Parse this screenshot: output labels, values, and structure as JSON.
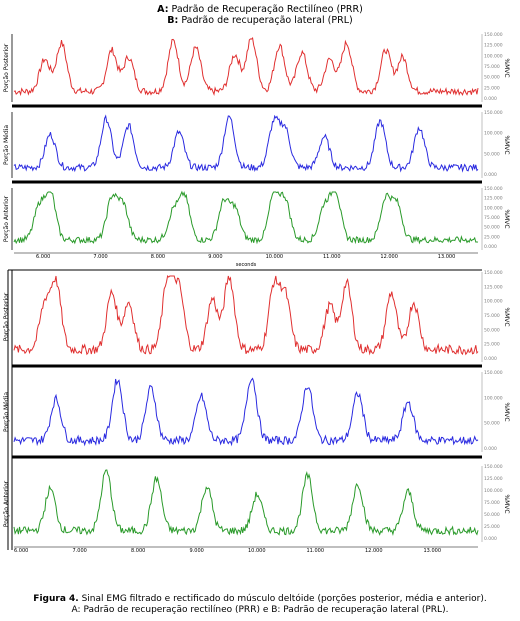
{
  "header": {
    "line_a_prefix": "A:",
    "line_a_text": "Padrão de Recuperação Rectilíneo (PRR)",
    "line_b_prefix": "B:",
    "line_b_text": "Padrão de recuperação lateral (PRL)"
  },
  "caption": {
    "label": "Figura 4.",
    "line1": "Sinal EMG filtrado e rectificado do músculo deltóide (porções posterior, média e anterior).",
    "line2": "A: Padrão de recuperação rectilíneo (PRR) e B: Padrão de recuperação lateral (PRL)."
  },
  "colors": {
    "posterior": "#e03030",
    "media": "#2a2ae0",
    "anterior": "#2a9a2a",
    "axis": "#000000",
    "tick_text": "#808080"
  },
  "chart_data": [
    {
      "type": "line",
      "panel": "A",
      "xlabel": "seconds",
      "x_ticks": [
        "6.000",
        "7.000",
        "8.000",
        "9.000",
        "10.000",
        "11.000",
        "12.000",
        "13.000"
      ],
      "unit_label": "%MVC",
      "series": [
        {
          "name": "Porção Posterior",
          "color_key": "posterior",
          "peak_times": [
            6.2,
            6.5,
            7.4,
            7.7,
            8.5,
            8.9,
            9.6,
            9.9,
            10.4,
            10.8,
            11.3,
            11.6,
            12.3,
            12.6
          ],
          "y_ticks": [
            "150.000",
            "125.000",
            "100.000",
            "75.000",
            "50.000",
            "25.000",
            "0.000"
          ]
        },
        {
          "name": "Porção Média",
          "color_key": "media",
          "peak_times": [
            6.3,
            7.3,
            7.7,
            8.6,
            9.5,
            10.3,
            10.5,
            11.2,
            12.2,
            12.9
          ],
          "y_ticks": [
            "150.000",
            "100.000",
            "50.000",
            "0.000"
          ]
        },
        {
          "name": "Porção Anterior",
          "color_key": "anterior",
          "peak_times": [
            6.1,
            6.3,
            7.4,
            7.6,
            8.5,
            8.7,
            9.4,
            9.6,
            10.3,
            10.5,
            11.2,
            11.4,
            12.3,
            12.5
          ],
          "y_ticks": [
            "150.000",
            "125.000",
            "100.000",
            "75.000",
            "50.000",
            "25.000",
            "0.000"
          ]
        }
      ]
    },
    {
      "type": "line",
      "panel": "B",
      "xlabel": "",
      "x_ticks": [
        "6.000",
        "7.000",
        "8.000",
        "9.000",
        "10.000",
        "11.000",
        "12.000",
        "13.000"
      ],
      "unit_label": "%MVC",
      "series": [
        {
          "name": "Porção Posterior",
          "color_key": "posterior",
          "peak_times": [
            6.2,
            6.4,
            7.4,
            7.7,
            8.4,
            8.6,
            9.2,
            9.5,
            10.3,
            10.5,
            11.3,
            11.6,
            12.4,
            12.8
          ],
          "y_ticks": [
            "150.000",
            "125.000",
            "100.000",
            "75.000",
            "50.000",
            "25.000",
            "0.000"
          ]
        },
        {
          "name": "Porção Média",
          "color_key": "media",
          "peak_times": [
            6.4,
            7.5,
            8.1,
            9.0,
            9.9,
            10.9,
            11.8,
            12.7
          ],
          "y_ticks": [
            "150.000",
            "100.000",
            "50.000",
            "0.000"
          ]
        },
        {
          "name": "Porção Anterior",
          "color_key": "anterior",
          "peak_times": [
            6.3,
            7.3,
            8.2,
            9.1,
            10.0,
            10.9,
            11.8,
            12.7
          ],
          "y_ticks": [
            "150.000",
            "125.000",
            "100.000",
            "75.000",
            "50.000",
            "25.000",
            "0.000"
          ]
        }
      ]
    }
  ]
}
